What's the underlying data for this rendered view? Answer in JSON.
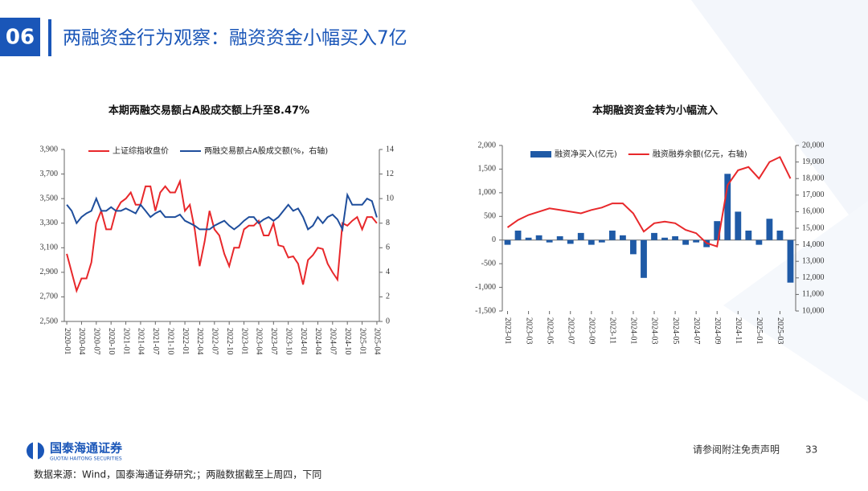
{
  "header": {
    "number": "06",
    "title": "两融资金行为观察：融资资金小幅买入7亿"
  },
  "chart_data": [
    {
      "type": "line",
      "title": "本期两融交易额占A股成交额上升至8.47%",
      "legend": "top",
      "categories": [
        "2020-01",
        null,
        null,
        "2020-04",
        null,
        null,
        "2020-07",
        null,
        null,
        "2020-10",
        null,
        null,
        "2021-01",
        null,
        null,
        "2021-04",
        null,
        null,
        "2021-07",
        null,
        null,
        "2021-10",
        null,
        null,
        "2022-01",
        null,
        null,
        "2022-04",
        null,
        null,
        "2022-07",
        null,
        null,
        "2022-10",
        null,
        null,
        "2023-01",
        null,
        null,
        "2023-04",
        null,
        null,
        "2023-07",
        null,
        null,
        "2023-10",
        null,
        null,
        "2024-01",
        null,
        null,
        "2024-04",
        null,
        null,
        "2024-07",
        null,
        null,
        "2024-10",
        null,
        null,
        "2025-01",
        null,
        null,
        "2025-04"
      ],
      "series": [
        {
          "name": "上证综指收盘价",
          "color": "#e8282b",
          "type": "line",
          "values": [
            3050,
            2900,
            2750,
            2850,
            2850,
            2980,
            3300,
            3400,
            3250,
            3250,
            3400,
            3470,
            3500,
            3550,
            3450,
            3450,
            3600,
            3600,
            3400,
            3550,
            3600,
            3550,
            3550,
            3640,
            3400,
            3450,
            3250,
            2950,
            3150,
            3400,
            3250,
            3200,
            3050,
            2950,
            3100,
            3100,
            3250,
            3280,
            3280,
            3320,
            3200,
            3200,
            3300,
            3120,
            3110,
            3020,
            3030,
            2970,
            2800,
            3000,
            3040,
            3100,
            3090,
            2970,
            2900,
            2840,
            3300,
            3280,
            3320,
            3350,
            3250,
            3350,
            3350,
            3300
          ]
        },
        {
          "name": "两融交易额占A股成交额(%，右轴)",
          "color": "#1f4e9c",
          "type": "line",
          "axis": "y2",
          "values": [
            9.5,
            9,
            8,
            8.5,
            8.8,
            9,
            10,
            9,
            9,
            9.3,
            9,
            9,
            9.2,
            9,
            8.8,
            9.5,
            9,
            8.5,
            8.8,
            9,
            8.5,
            8.5,
            8.5,
            8.7,
            8.2,
            8,
            7.8,
            7.5,
            7.5,
            7.5,
            7.8,
            8,
            8.2,
            7.8,
            7.5,
            7.8,
            8.2,
            8.5,
            8.5,
            8,
            8.3,
            8.5,
            8.2,
            8.5,
            9,
            9.5,
            9,
            9.2,
            8.5,
            7.5,
            7.8,
            8.5,
            8,
            8.5,
            8.7,
            8.3,
            7.5,
            10.3,
            9.5,
            9.5,
            9.5,
            10,
            9.8,
            8.47
          ]
        }
      ],
      "ylim": [
        2500,
        3900
      ],
      "yticks": [
        {
          "value": 2500,
          "label": "2,500"
        },
        {
          "value": 2700,
          "label": "2,700"
        },
        {
          "value": 2900,
          "label": "2,900"
        },
        {
          "value": 3100,
          "label": "3,100"
        },
        {
          "value": 3300,
          "label": "3,300"
        },
        {
          "value": 3500,
          "label": "3,500"
        },
        {
          "value": 3700,
          "label": "3,700"
        },
        {
          "value": 3900,
          "label": "3,900"
        }
      ],
      "y2lim": [
        0,
        14
      ],
      "y2ticks": [
        0,
        2,
        4,
        6,
        8,
        10,
        12,
        14
      ]
    },
    {
      "type": "bar",
      "title": "本期融资资金转为小幅流入",
      "legend": "top",
      "categories": [
        "2023-01",
        null,
        "2023-03",
        null,
        "2023-05",
        null,
        "2023-07",
        null,
        "2023-09",
        null,
        "2023-11",
        null,
        "2024-01",
        null,
        "2024-03",
        null,
        "2024-05",
        null,
        "2024-07",
        null,
        "2024-09",
        null,
        "2024-11",
        null,
        "2025-01",
        null,
        "2025-03",
        null
      ],
      "series": [
        {
          "name": "融资净买入(亿元)",
          "color": "#1f5aa6",
          "type": "bar",
          "values": [
            -100,
            200,
            50,
            100,
            -50,
            80,
            -80,
            150,
            -100,
            -50,
            200,
            100,
            -300,
            -800,
            150,
            50,
            80,
            -100,
            -50,
            -150,
            400,
            1400,
            600,
            200,
            -100,
            450,
            200,
            -900
          ]
        },
        {
          "name": "融资融券余额(亿元，右轴)",
          "color": "#e8282b",
          "type": "line",
          "axis": "y2",
          "values": [
            15050,
            15500,
            15800,
            16000,
            16200,
            16100,
            16000,
            15900,
            16100,
            16250,
            16500,
            16500,
            15900,
            14800,
            15300,
            15400,
            15300,
            14900,
            14700,
            14100,
            13900,
            17600,
            18500,
            18700,
            18000,
            19000,
            19300,
            18000
          ]
        }
      ],
      "ylim": [
        -1500,
        2000
      ],
      "yticks": [
        {
          "value": -1500,
          "label": "-1,500"
        },
        {
          "value": -1000,
          "label": "-1,000"
        },
        -500,
        0,
        500,
        {
          "value": 1000,
          "label": "1,000"
        },
        {
          "value": 1500,
          "label": "1,500"
        },
        {
          "value": 2000,
          "label": "2,000"
        }
      ],
      "y2lim": [
        10000,
        20000
      ],
      "y2ticks": [
        {
          "value": 10000,
          "label": "10,000"
        },
        {
          "value": 11000,
          "label": "11,000"
        },
        {
          "value": 12000,
          "label": "12,000"
        },
        {
          "value": 13000,
          "label": "13,000"
        },
        {
          "value": 14000,
          "label": "14,000"
        },
        {
          "value": 15000,
          "label": "15,000"
        },
        {
          "value": 16000,
          "label": "16,000"
        },
        {
          "value": 17000,
          "label": "17,000"
        },
        {
          "value": 18000,
          "label": "18,000"
        },
        {
          "value": 19000,
          "label": "19,000"
        },
        {
          "value": 20000,
          "label": "20,000"
        }
      ]
    }
  ],
  "footer": {
    "logo": "国泰海通证券",
    "logo_en": "GUOTAI HAITONG SECURITIES",
    "disclaimer": "请参阅附注免责声明",
    "page": "33",
    "source": "数据来源：Wind，国泰海通证券研究;；两融数据截至上周四，下同"
  }
}
